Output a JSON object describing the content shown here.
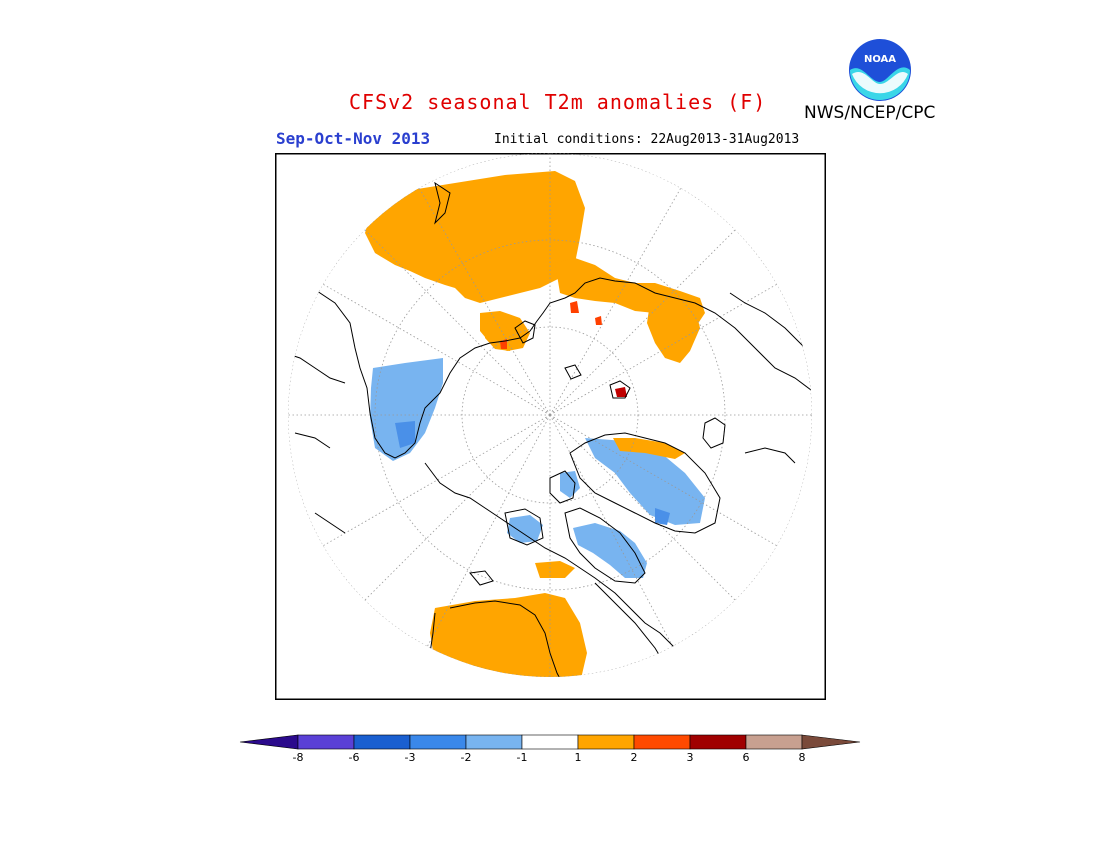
{
  "header": {
    "title": "CFSv2 seasonal T2m anomalies (F)",
    "season": "Sep-Oct-Nov 2013",
    "initial_conditions": "Initial conditions: 22Aug2013-31Aug2013",
    "agency": "NWS/NCEP/CPC",
    "logo_text": "NOAA"
  },
  "colors": {
    "title": "#e00000",
    "season": "#2a3fcf",
    "anomaly_warm_1_2": "#ffa500",
    "anomaly_warm_2_3": "#ff4000",
    "anomaly_warm_3_6": "#c00000",
    "anomaly_cool_1_2": "#78b4f0",
    "anomaly_cool_2_3": "#4a90e8"
  },
  "colorbar": {
    "colors": [
      "#2b0a8c",
      "#5a40d6",
      "#1a5fd0",
      "#3a88ea",
      "#78b4f0",
      "#ffffff",
      "#ffa500",
      "#ff4a00",
      "#a00000",
      "#c8a090",
      "#7a4a3a"
    ],
    "labels": [
      "-8",
      "-6",
      "-3",
      "-2",
      "-1",
      "1",
      "2",
      "3",
      "6",
      "8"
    ]
  }
}
